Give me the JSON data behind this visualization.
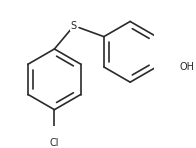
{
  "line_color": "#2a2a2a",
  "bg_color": "#ffffff",
  "line_width": 1.2,
  "font_size_S": 7.0,
  "font_size_Cl": 7.0,
  "font_size_OH": 7.0,
  "S_label": "S",
  "Cl_label": "Cl",
  "OH_label": "OH",
  "bl": 0.22
}
